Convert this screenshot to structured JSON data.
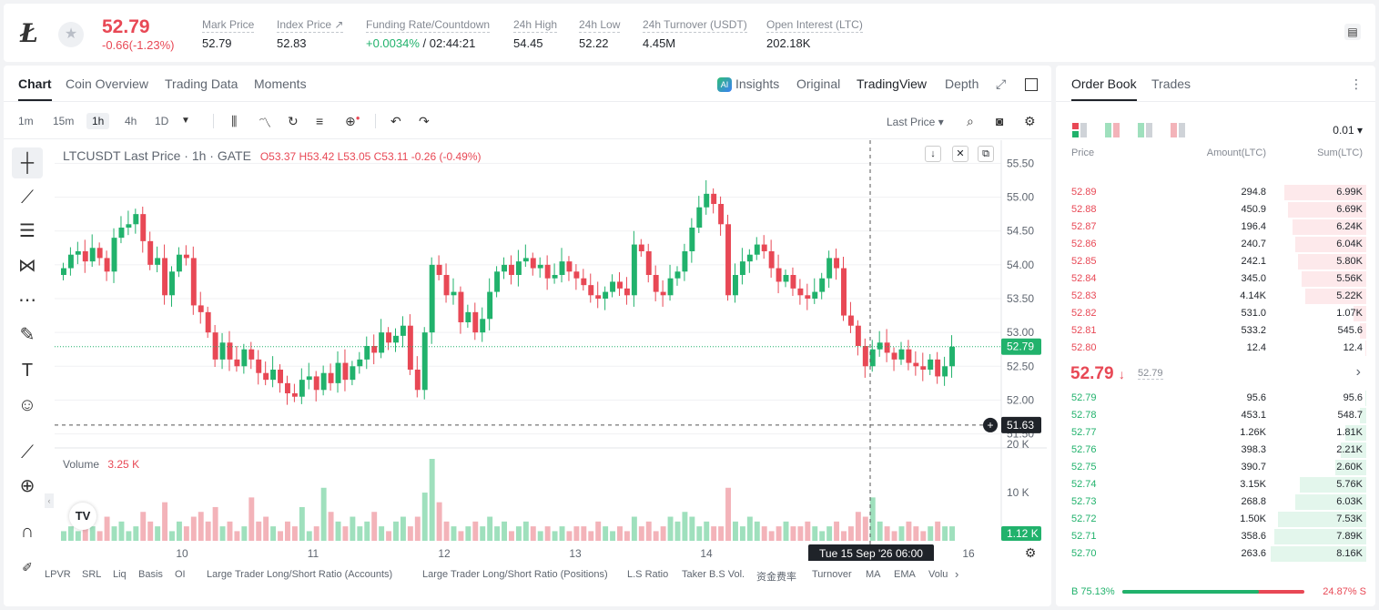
{
  "ticker": {
    "coin_symbol": "Ł",
    "last_price": "52.79",
    "change": "-0.66(-1.23%)",
    "stats": [
      {
        "label": "Mark Price",
        "value": "52.79"
      },
      {
        "label": "Index Price ↗",
        "value": "52.83"
      },
      {
        "label": "Funding Rate/Countdown",
        "value_green": "+0.0034%",
        "value": " / 02:44:21"
      },
      {
        "label": "24h High",
        "value": "54.45"
      },
      {
        "label": "24h Low",
        "value": "52.22"
      },
      {
        "label": "24h Turnover (USDT)",
        "value": "4.45M"
      },
      {
        "label": "Open Interest (LTC)",
        "value": "202.18K"
      }
    ]
  },
  "chart_tabs": [
    "Chart",
    "Coin Overview",
    "Trading Data",
    "Moments"
  ],
  "chart_views": {
    "insights": "Insights",
    "original": "Original",
    "tradingview": "TradingView",
    "depth": "Depth"
  },
  "timeframes": [
    "1m",
    "15m",
    "1h",
    "4h",
    "1D"
  ],
  "price_type": "Last Price",
  "legend": {
    "symbol": "LTCUSDT Last Price · 1h · GATE",
    "o": "O53.37",
    "h": "H53.42",
    "l": "L53.05",
    "c": "C53.11",
    "chg": "-0.26 (-0.49%)"
  },
  "volume_legend": {
    "label": "Volume",
    "value": "3.25 K"
  },
  "crosshair": {
    "price": "51.63",
    "time": "Tue 15 Sep '26   06:00"
  },
  "current_price_tag": "52.79",
  "current_volume_tag": "1.12 K",
  "bottom_indicators": [
    "LPVR",
    "SRL",
    "Liq",
    "Basis",
    "OI",
    "Large Trader Long/Short Ratio (Accounts)",
    "Large Trader Long/Short Ratio (Positions)",
    "L.S Ratio",
    "Taker B.S Vol.",
    "资金费率",
    "Turnover",
    "MA",
    "EMA",
    "Volu"
  ],
  "chart_data": {
    "type": "candlestick",
    "title": "LTCUSDT Last Price · 1h · GATE",
    "price_ticks": [
      "55.50",
      "55.00",
      "54.50",
      "54.00",
      "53.50",
      "53.00",
      "52.50",
      "52.00",
      "51.50"
    ],
    "volume_ticks": [
      "20 K",
      "10 K"
    ],
    "x_ticks": [
      "10",
      "11",
      "12",
      "13",
      "14",
      "16"
    ],
    "ylim": [
      51.4,
      55.6
    ],
    "close_series": [
      53.95,
      54.15,
      54.2,
      54.05,
      54.25,
      54.1,
      53.9,
      54.4,
      54.55,
      54.6,
      54.75,
      54.35,
      54.0,
      54.1,
      53.55,
      53.9,
      54.15,
      54.1,
      53.4,
      53.3,
      53.0,
      52.6,
      52.85,
      52.6,
      52.5,
      52.75,
      52.6,
      52.4,
      52.3,
      52.45,
      52.25,
      52.1,
      52.05,
      52.3,
      52.35,
      52.15,
      52.4,
      52.25,
      52.55,
      52.3,
      52.5,
      52.6,
      52.8,
      52.7,
      53.0,
      52.85,
      52.95,
      53.1,
      52.45,
      52.15,
      53.0,
      54.0,
      53.85,
      53.55,
      53.6,
      53.15,
      53.3,
      53.0,
      53.2,
      53.6,
      53.9,
      54.0,
      53.85,
      54.05,
      54.1,
      53.95,
      54.0,
      53.8,
      53.85,
      54.05,
      53.9,
      53.8,
      53.7,
      53.55,
      53.5,
      53.6,
      53.75,
      53.65,
      53.55,
      54.3,
      54.2,
      53.85,
      53.6,
      53.55,
      53.8,
      53.9,
      54.2,
      54.55,
      54.85,
      55.05,
      54.9,
      54.6,
      53.55,
      53.85,
      54.05,
      54.15,
      54.3,
      54.2,
      53.95,
      53.75,
      53.85,
      53.65,
      53.55,
      53.5,
      53.6,
      53.8,
      54.1,
      53.95,
      53.25,
      53.1,
      52.8,
      52.5,
      52.75,
      52.85,
      52.7,
      52.6,
      52.75,
      52.55,
      52.5,
      52.45,
      52.6,
      52.35,
      52.5,
      52.79
    ],
    "volume_series": [
      2,
      3,
      2,
      4,
      3,
      2,
      5,
      3,
      4,
      2,
      3,
      6,
      4,
      3,
      8,
      2,
      4,
      3,
      5,
      6,
      4,
      7,
      3,
      4,
      2,
      3,
      9,
      4,
      5,
      3,
      2,
      4,
      3,
      7,
      2,
      3,
      11,
      6,
      4,
      3,
      5,
      3,
      4,
      6,
      3,
      2,
      4,
      5,
      3,
      5,
      10,
      17,
      8,
      4,
      3,
      2,
      3,
      4,
      3,
      5,
      3,
      4,
      2,
      3,
      4,
      3,
      2,
      3,
      2,
      3,
      2,
      3,
      3,
      2,
      4,
      3,
      2,
      3,
      2,
      5,
      3,
      4,
      2,
      3,
      5,
      4,
      6,
      5,
      3,
      4,
      3,
      3,
      11,
      4,
      3,
      5,
      4,
      3,
      2,
      3,
      4,
      3,
      3,
      4,
      3,
      2,
      3,
      4,
      2,
      3,
      6,
      5,
      9,
      4,
      3,
      2,
      3,
      4,
      3,
      2,
      3,
      4,
      3,
      3
    ]
  },
  "orderbook": {
    "tabs": [
      "Order Book",
      "Trades"
    ],
    "precision": "0.01",
    "headers": {
      "price": "Price",
      "amount": "Amount(LTC)",
      "sum": "Sum(LTC)"
    },
    "asks": [
      {
        "price": "52.89",
        "amount": "294.8",
        "sum": "6.99K",
        "depth": 0.86
      },
      {
        "price": "52.88",
        "amount": "450.9",
        "sum": "6.69K",
        "depth": 0.82
      },
      {
        "price": "52.87",
        "amount": "196.4",
        "sum": "6.24K",
        "depth": 0.77
      },
      {
        "price": "52.86",
        "amount": "240.7",
        "sum": "6.04K",
        "depth": 0.74
      },
      {
        "price": "52.85",
        "amount": "242.1",
        "sum": "5.80K",
        "depth": 0.71
      },
      {
        "price": "52.84",
        "amount": "345.0",
        "sum": "5.56K",
        "depth": 0.68
      },
      {
        "price": "52.83",
        "amount": "4.14K",
        "sum": "5.22K",
        "depth": 0.64
      },
      {
        "price": "52.82",
        "amount": "531.0",
        "sum": "1.07K",
        "depth": 0.13
      },
      {
        "price": "52.81",
        "amount": "533.2",
        "sum": "545.6",
        "depth": 0.07
      },
      {
        "price": "52.80",
        "amount": "12.4",
        "sum": "12.4",
        "depth": 0.01
      }
    ],
    "mid": {
      "price": "52.79",
      "arrow": "↓",
      "mark": "52.79"
    },
    "bids": [
      {
        "price": "52.79",
        "amount": "95.6",
        "sum": "95.6",
        "depth": 0.01
      },
      {
        "price": "52.78",
        "amount": "453.1",
        "sum": "548.7",
        "depth": 0.07
      },
      {
        "price": "52.77",
        "amount": "1.26K",
        "sum": "1.81K",
        "depth": 0.22
      },
      {
        "price": "52.76",
        "amount": "398.3",
        "sum": "2.21K",
        "depth": 0.27
      },
      {
        "price": "52.75",
        "amount": "390.7",
        "sum": "2.60K",
        "depth": 0.32
      },
      {
        "price": "52.74",
        "amount": "3.15K",
        "sum": "5.76K",
        "depth": 0.7
      },
      {
        "price": "52.73",
        "amount": "268.8",
        "sum": "6.03K",
        "depth": 0.74
      },
      {
        "price": "52.72",
        "amount": "1.50K",
        "sum": "7.53K",
        "depth": 0.92
      },
      {
        "price": "52.71",
        "amount": "358.6",
        "sum": "7.89K",
        "depth": 0.96
      },
      {
        "price": "52.70",
        "amount": "263.6",
        "sum": "8.16K",
        "depth": 1.0
      }
    ],
    "buy_ratio": "B 75.13%",
    "sell_ratio": "24.87% S",
    "buy_fraction": 0.7513
  },
  "colors": {
    "up": "#21b26c",
    "down": "#e84855"
  }
}
